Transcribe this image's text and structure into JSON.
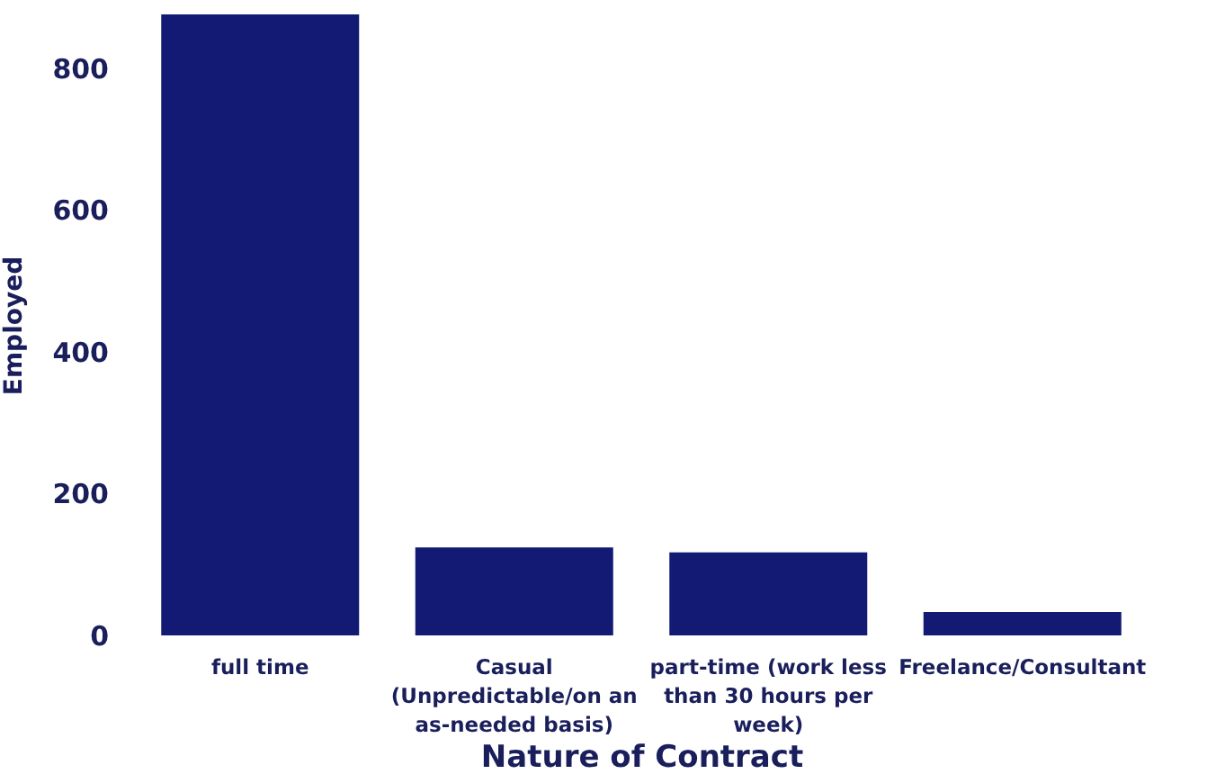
{
  "chart_data": {
    "type": "bar",
    "xlabel": "Nature of Contract",
    "ylabel": "Employed",
    "categories": [
      "full time",
      "Casual (Unpredictable/on an as-needed basis)",
      "part-time (work less than 30 hours per week)",
      "Freelance/Consultant"
    ],
    "values": [
      876,
      124,
      117,
      33
    ],
    "color": "#121a73",
    "ylim": [
      0,
      876
    ],
    "yticks": [
      0,
      200,
      400,
      600,
      800
    ],
    "grid": false
  }
}
